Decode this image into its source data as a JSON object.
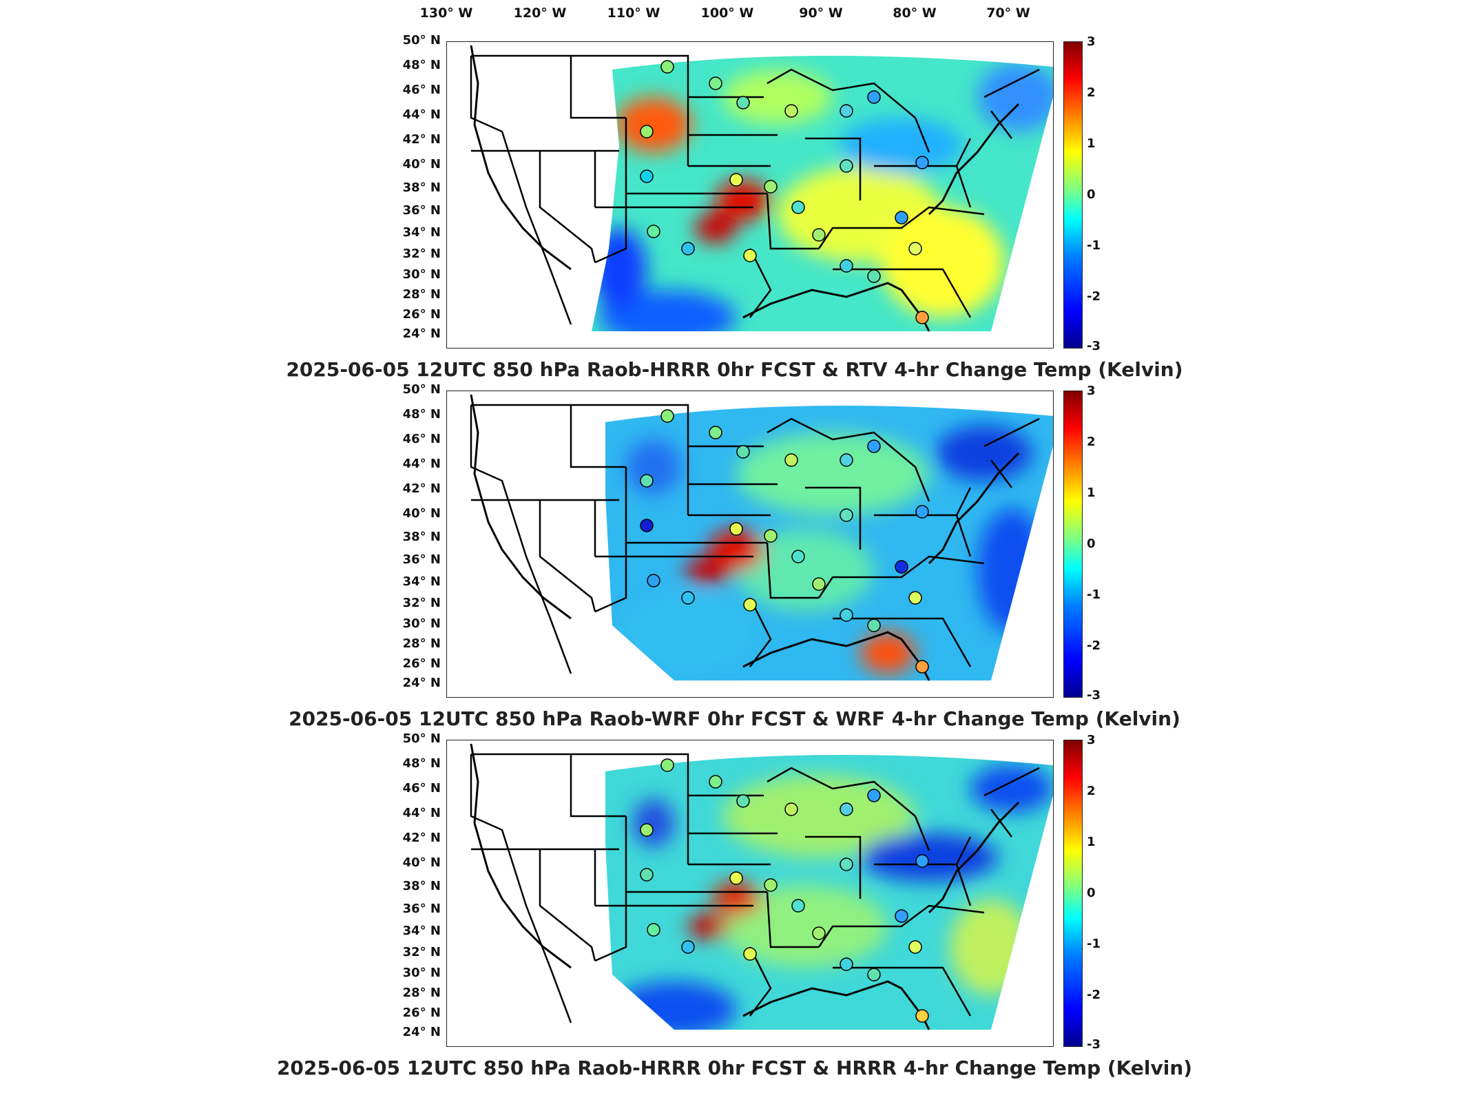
{
  "longitude_labels": [
    "130° W",
    "120° W",
    "110° W",
    "100° W",
    "90° W",
    "80° W",
    "70° W"
  ],
  "latitude_labels": [
    "50° N",
    "48° N",
    "46° N",
    "44° N",
    "42° N",
    "40° N",
    "38° N",
    "36° N",
    "34° N",
    "32° N",
    "30° N",
    "28° N",
    "26° N",
    "24° N"
  ],
  "colorbar": {
    "ticks": [
      "3",
      "2",
      "1",
      "0",
      "-1",
      "-2",
      "-3"
    ],
    "range": [
      -3,
      3
    ],
    "colormap": "jet",
    "colors": [
      "#00008f",
      "#0000ff",
      "#0080ff",
      "#00ffff",
      "#80ff80",
      "#ffff00",
      "#ff8000",
      "#ff0000",
      "#800000"
    ]
  },
  "panels": [
    {
      "title": "2025-06-05 12UTC 850 hPa Raob-HRRR 0hr FCST & RTV 4-hr Change Temp (Kelvin)"
    },
    {
      "title": "2025-06-05 12UTC 850 hPa Raob-WRF 0hr FCST & WRF 4-hr Change Temp (Kelvin)"
    },
    {
      "title": "2025-06-05 12UTC 850 hPa Raob-HRRR 0hr FCST & HRRR 4-hr Change Temp (Kelvin)"
    }
  ]
}
